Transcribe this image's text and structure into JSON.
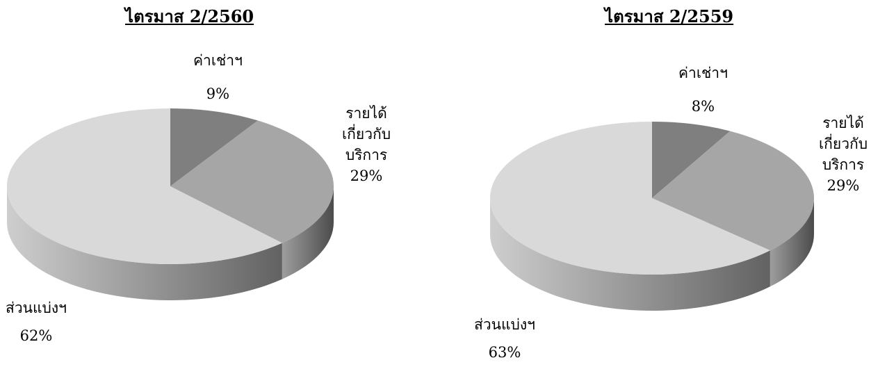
{
  "chart_data": [
    {
      "type": "pie",
      "title": "ไตรมาส 2/2560",
      "slices": [
        {
          "name": "ค่าเช่าฯ",
          "value": 9,
          "value_label": "9%",
          "color": "#7f7f7f"
        },
        {
          "name": "รายได้เกี่ยวกับบริการ",
          "name_lines": [
            "รายได้",
            "เกี่ยวกับ",
            "บริการ"
          ],
          "value": 29,
          "value_label": "29%",
          "color": "#a6a6a6"
        },
        {
          "name": "ส่วนแบ่งฯ",
          "value": 62,
          "value_label": "62%",
          "color": "#d9d9d9"
        }
      ]
    },
    {
      "type": "pie",
      "title": "ไตรมาส 2/2559",
      "slices": [
        {
          "name": "ค่าเช่าฯ",
          "value": 8,
          "value_label": "8%",
          "color": "#7f7f7f"
        },
        {
          "name": "รายได้เกี่ยวกับบริการ",
          "name_lines": [
            "รายได้",
            "เกี่ยวกับ",
            "บริการ"
          ],
          "value": 29,
          "value_label": "29%",
          "color": "#a6a6a6"
        },
        {
          "name": "ส่วนแบ่งฯ",
          "value": 63,
          "value_label": "63%",
          "color": "#d9d9d9"
        }
      ]
    }
  ]
}
